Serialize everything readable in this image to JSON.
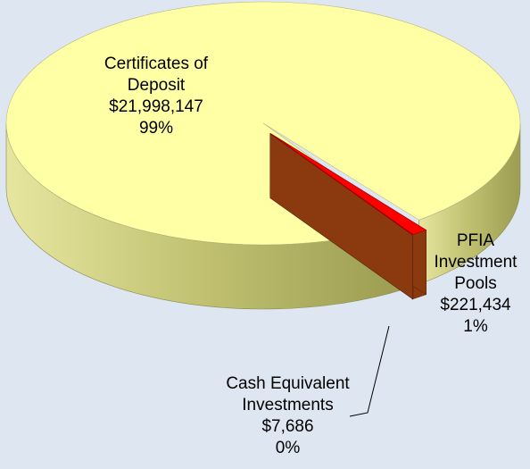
{
  "chart_data": {
    "type": "pie",
    "categories": [
      "Certificates of Deposit",
      "PFIA Investment Pools",
      "Cash Equivalent Investments"
    ],
    "values": [
      21998147,
      221434,
      7686
    ],
    "value_labels": [
      "$21,998,147",
      "$221,434",
      "$7,686"
    ],
    "percent_labels": [
      "99%",
      "1%",
      "0%"
    ],
    "colors": [
      "#ffffa6",
      "#ff0000",
      "#ff8040"
    ],
    "side_colors": [
      "#c8c878",
      "#8b3a10",
      "#8b3a10"
    ]
  }
}
